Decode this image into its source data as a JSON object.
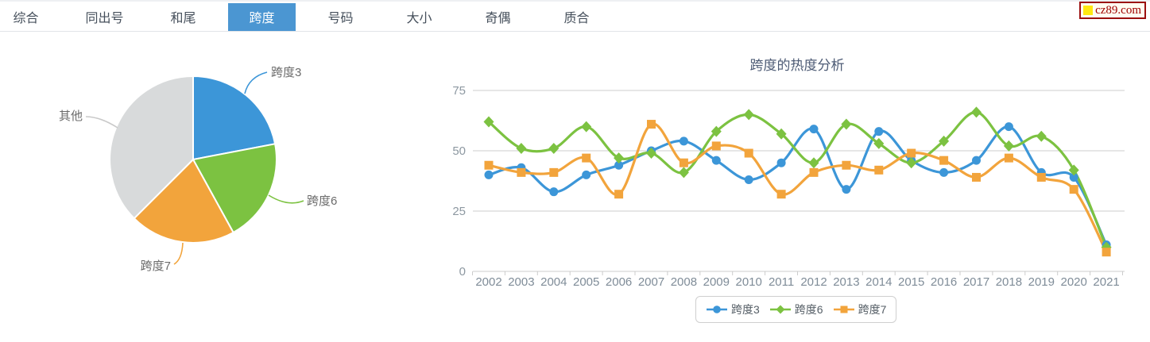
{
  "header": {
    "tabs": [
      {
        "label": "综合",
        "active": false
      },
      {
        "label": "同出号",
        "active": false
      },
      {
        "label": "和尾",
        "active": false
      },
      {
        "label": "跨度",
        "active": true
      },
      {
        "label": "号码",
        "active": false
      },
      {
        "label": "大小",
        "active": false
      },
      {
        "label": "奇偶",
        "active": false
      },
      {
        "label": "质合",
        "active": false
      }
    ],
    "logo_text": "cz89.com"
  },
  "colors": {
    "active_tab": "#4B96D2",
    "blue": "#3C96D8",
    "green": "#7CC241",
    "orange": "#F2A43C",
    "gray": "#D8DADB",
    "grid": "#cccccc",
    "axis_text": "#8D98A1",
    "year_text": "#7F8C98",
    "title_text": "#4D5B75",
    "pie_label_text": "#6b6b6b"
  },
  "chart_data": [
    {
      "type": "pie",
      "labels": [
        "跨度3",
        "跨度6",
        "跨度7",
        "其他"
      ],
      "values": [
        22,
        20,
        20.5,
        37.5
      ],
      "colors": [
        "#3C96D8",
        "#7CC241",
        "#F2A43C",
        "#D8DADB"
      ],
      "start_angle": "top",
      "direction": "clockwise",
      "legend_position": "none"
    },
    {
      "type": "line",
      "title": "跨度的热度分析",
      "x": [
        "2002",
        "2003",
        "2004",
        "2005",
        "2006",
        "2007",
        "2008",
        "2009",
        "2010",
        "2011",
        "2012",
        "2013",
        "2014",
        "2015",
        "2016",
        "2017",
        "2018",
        "2019",
        "2020",
        "2021"
      ],
      "series": [
        {
          "name": "跨度3",
          "color": "#3C96D8",
          "marker": "circle",
          "values": [
            40,
            43,
            33,
            40,
            44,
            50,
            54,
            46,
            38,
            45,
            59,
            34,
            58,
            46,
            41,
            46,
            60,
            41,
            39,
            11
          ]
        },
        {
          "name": "跨度6",
          "color": "#7CC241",
          "marker": "diamond",
          "values": [
            62,
            51,
            51,
            60,
            47,
            49,
            41,
            58,
            65,
            57,
            45,
            61,
            53,
            45,
            54,
            66,
            52,
            56,
            42,
            10
          ]
        },
        {
          "name": "跨度7",
          "color": "#F2A43C",
          "marker": "square",
          "values": [
            44,
            41,
            41,
            47,
            32,
            61,
            45,
            52,
            49,
            32,
            41,
            44,
            42,
            49,
            46,
            39,
            47,
            39,
            34,
            8
          ]
        }
      ],
      "ylim": [
        0,
        75
      ],
      "yticks": [
        0,
        25,
        50,
        75
      ],
      "grid": "horizontal",
      "legend_position": "bottom"
    }
  ]
}
